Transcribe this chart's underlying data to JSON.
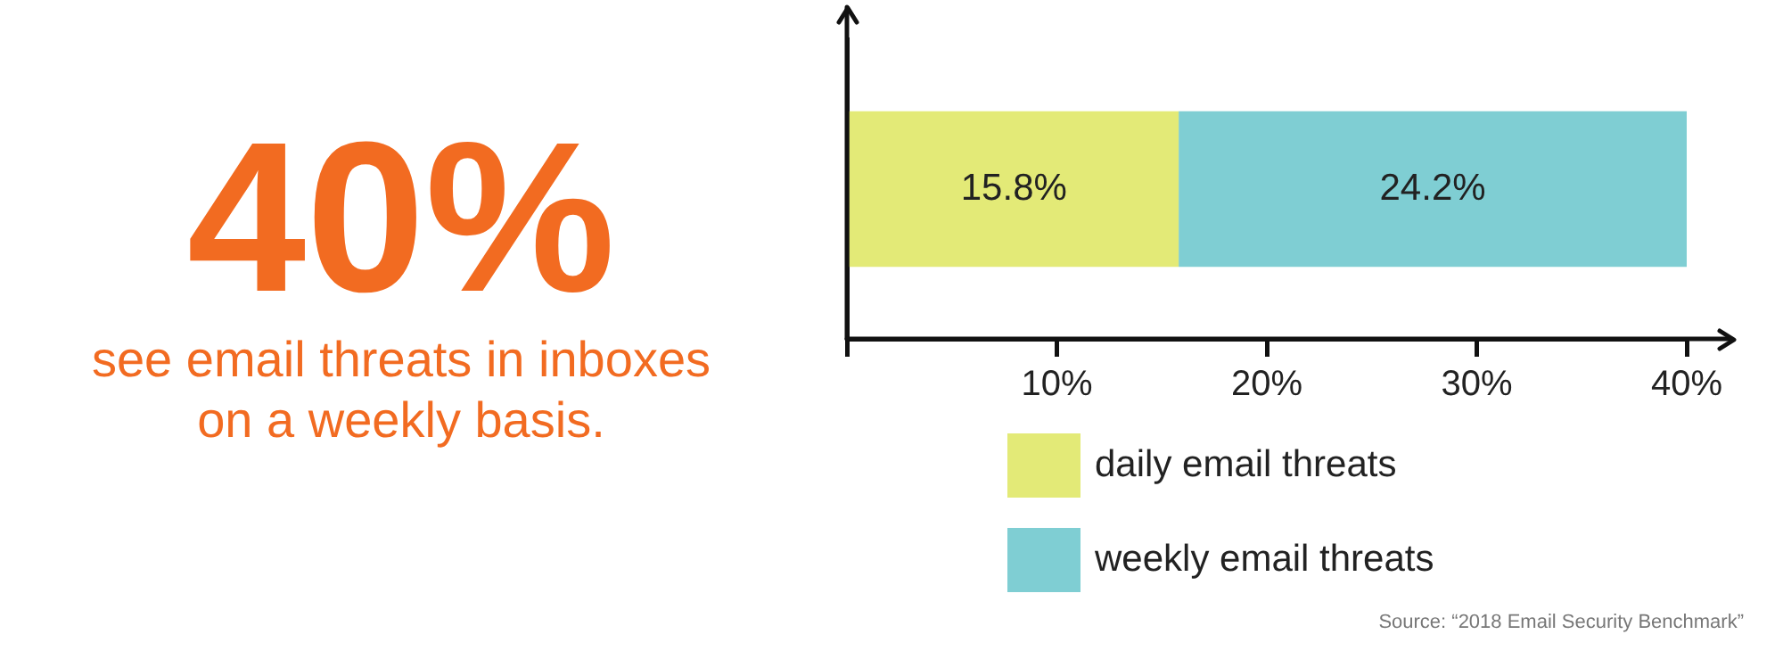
{
  "chart_data": {
    "type": "bar",
    "orientation": "horizontal",
    "stacked": true,
    "title": "40%",
    "subtitle": "see email threats in inboxes on a weekly basis.",
    "categories": [
      null
    ],
    "series": [
      {
        "name": "daily email threats",
        "color": "#e3ea77",
        "values": [
          15.8
        ],
        "value_labels": [
          "15.8%"
        ]
      },
      {
        "name": "weekly email threats",
        "color": "#7fced3",
        "values": [
          24.2
        ],
        "value_labels": [
          "24.2%"
        ]
      }
    ],
    "xlim": [
      0,
      40
    ],
    "xticks": [
      {
        "value": 0,
        "label": null
      },
      {
        "value": 10,
        "label": "10%"
      },
      {
        "value": 20,
        "label": "20%"
      },
      {
        "value": 30,
        "label": "30%"
      },
      {
        "value": 40,
        "label": "40%"
      }
    ],
    "grid": false,
    "legend": "bottom",
    "annotations": [
      "Source: “2018 Email Security Benchmark”"
    ]
  }
}
